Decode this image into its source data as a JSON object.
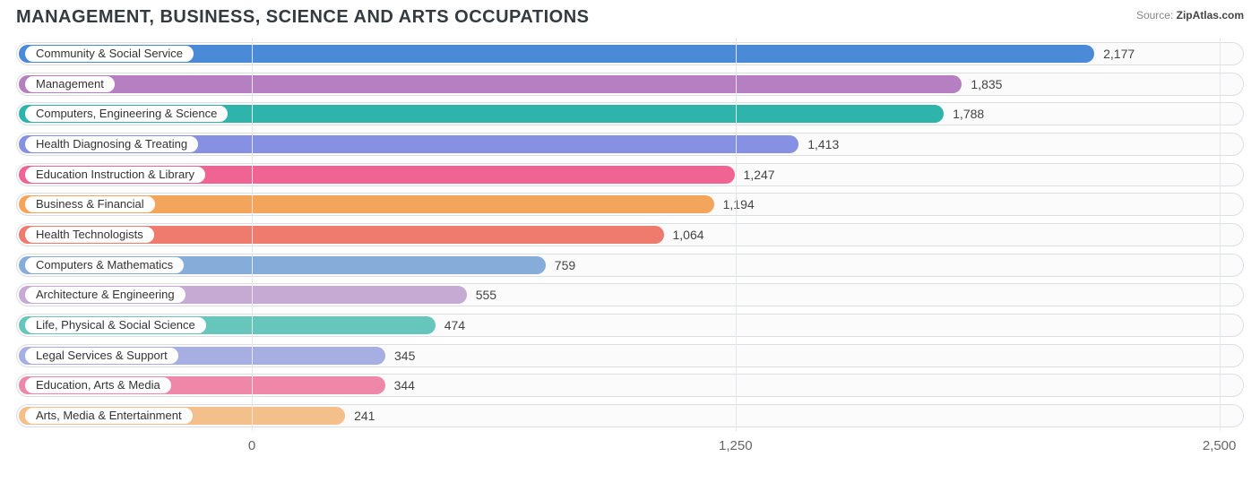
{
  "title": "MANAGEMENT, BUSINESS, SCIENCE AND ARTS OCCUPATIONS",
  "source": {
    "label": "Source:",
    "value": "ZipAtlas.com"
  },
  "chart": {
    "type": "bar-horizontal",
    "xlim": [
      -160,
      2620
    ],
    "zero_offset_pct": 19.2,
    "ticks": [
      {
        "value": 0,
        "label": "0"
      },
      {
        "value": 1250,
        "label": "1,250"
      },
      {
        "value": 2500,
        "label": "2,500"
      }
    ],
    "track_border": "#dcdfe2",
    "track_bg": "#fbfbfc",
    "grid_color": "#e5e7e9",
    "text_color": "#444",
    "title_color": "#333a40",
    "title_fontsize": 20,
    "label_fontsize": 13,
    "value_fontsize": 14,
    "bars": [
      {
        "label": "Community & Social Service",
        "value": 2177,
        "value_text": "2,177",
        "color": "#4b8ad6"
      },
      {
        "label": "Management",
        "value": 1835,
        "value_text": "1,835",
        "color": "#b67fc1"
      },
      {
        "label": "Computers, Engineering & Science",
        "value": 1788,
        "value_text": "1,788",
        "color": "#2fb4ac"
      },
      {
        "label": "Health Diagnosing & Treating",
        "value": 1413,
        "value_text": "1,413",
        "color": "#8691e4"
      },
      {
        "label": "Education Instruction & Library",
        "value": 1247,
        "value_text": "1,247",
        "color": "#ef6492"
      },
      {
        "label": "Business & Financial",
        "value": 1194,
        "value_text": "1,194",
        "color": "#f3a55b"
      },
      {
        "label": "Health Technologists",
        "value": 1064,
        "value_text": "1,064",
        "color": "#ef7a6e"
      },
      {
        "label": "Computers & Mathematics",
        "value": 759,
        "value_text": "759",
        "color": "#86add9"
      },
      {
        "label": "Architecture & Engineering",
        "value": 555,
        "value_text": "555",
        "color": "#c6aad4"
      },
      {
        "label": "Life, Physical & Social Science",
        "value": 474,
        "value_text": "474",
        "color": "#66c6bc"
      },
      {
        "label": "Legal Services & Support",
        "value": 345,
        "value_text": "345",
        "color": "#a7aee1"
      },
      {
        "label": "Education, Arts & Media",
        "value": 344,
        "value_text": "344",
        "color": "#ef87a9"
      },
      {
        "label": "Arts, Media & Entertainment",
        "value": 241,
        "value_text": "241",
        "color": "#f3bf8a"
      }
    ]
  }
}
